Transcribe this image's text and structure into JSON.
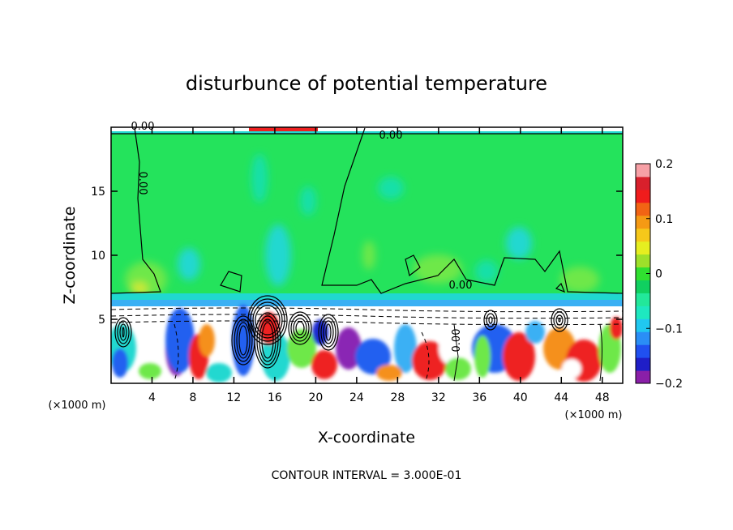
{
  "chart_data": {
    "type": "heatmap",
    "title": "disturbunce of potential temperature",
    "xlabel": "X-coordinate",
    "ylabel": "Z-coordinate",
    "x_unit": "(×1000 m)",
    "y_unit": "(×1000 m)",
    "xlim": [
      0,
      50
    ],
    "ylim": [
      0,
      20
    ],
    "x_ticks": [
      "4",
      "8",
      "12",
      "16",
      "20",
      "24",
      "28",
      "32",
      "36",
      "40",
      "44",
      "48"
    ],
    "y_ticks": [
      "5",
      "10",
      "15"
    ],
    "colorbar": {
      "min": -0.2,
      "max": 0.2,
      "ticks": [
        "0.2",
        "0.1",
        "0",
        "−0.1",
        "−0.2"
      ],
      "colors": [
        "#8a1fa8",
        "#1f1ec7",
        "#2050f0",
        "#2a8ef6",
        "#20c8f0",
        "#1ee8c0",
        "#22e89a",
        "#10d060",
        "#30e030",
        "#9ee02a",
        "#e6ee20",
        "#f6c81a",
        "#f59a14",
        "#f26414",
        "#f01c1c",
        "#d8202c",
        "#f7a0a6"
      ]
    },
    "contour_labels": [
      "0.00",
      "0.00",
      "0.00",
      "0.00",
      "0.00"
    ],
    "footer": "CONTOUR INTERVAL = 3.000E-01"
  }
}
